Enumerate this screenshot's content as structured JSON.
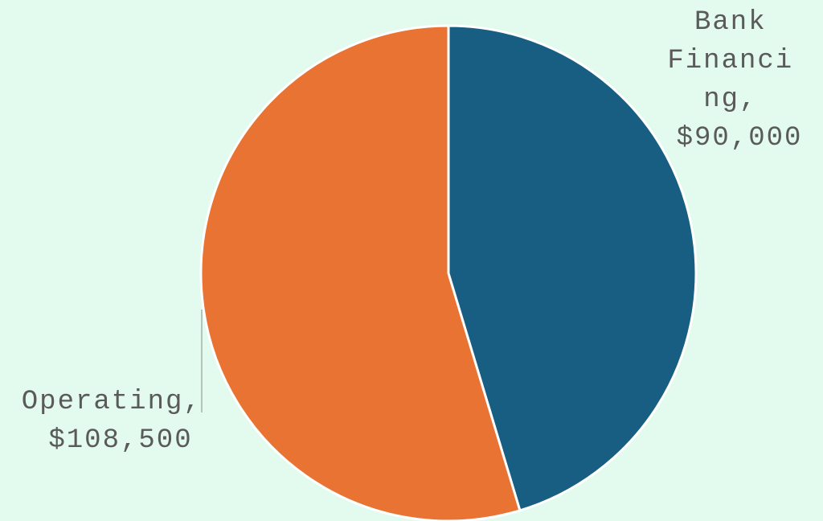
{
  "colors": {
    "background": "#e3fbee",
    "text": "#5a5a5a",
    "slice_border": "#ffffff",
    "leader_line": "#8a8a8a"
  },
  "chart_data": {
    "type": "pie",
    "title": "",
    "start_angle_deg": 0,
    "direction": "clockwise",
    "legend": "none",
    "slices": [
      {
        "label": "Bank Financing",
        "value": 90000,
        "display_value": "$90,000",
        "color": "#175e82",
        "label_lines": [
          "Bank",
          "Financi",
          "ng,",
          "$90,000"
        ]
      },
      {
        "label": "Operating",
        "value": 108500,
        "display_value": "$108,500",
        "color": "#e97333",
        "label_lines": [
          "Operating,",
          "$108,500"
        ]
      }
    ]
  }
}
